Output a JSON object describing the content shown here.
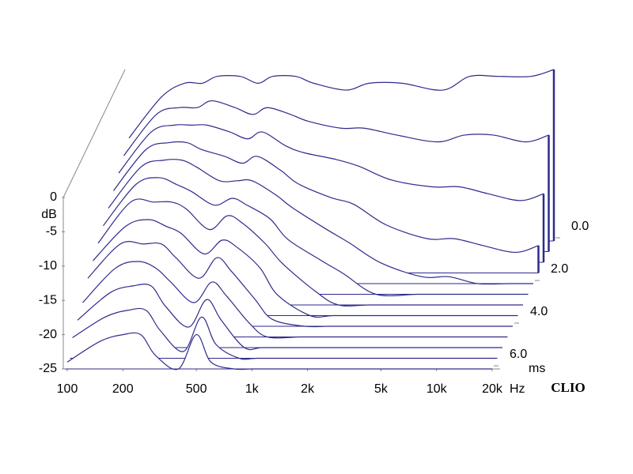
{
  "chart_data": {
    "type": "waterfall",
    "color": "#2e2a8c",
    "log_x": true,
    "y_label": "dB",
    "x_unit": "Hz",
    "z_unit": "ms",
    "brand": "CLIO",
    "xlim": [
      100,
      20000
    ],
    "ylim": [
      -25,
      0
    ],
    "zlim": [
      0,
      6
    ],
    "xticks": [
      100,
      200,
      500,
      {
        "value": 1000,
        "label": "1k"
      },
      {
        "value": 2000,
        "label": "2k"
      },
      {
        "value": 5000,
        "label": "5k"
      },
      {
        "value": 10000,
        "label": "10k"
      },
      {
        "value": 20000,
        "label": "20k"
      }
    ],
    "yticks": [
      0,
      -5,
      -10,
      -15,
      -20,
      -25
    ],
    "zticks": [
      {
        "value": 0,
        "label": "0.0"
      },
      {
        "value": 2,
        "label": "2.0"
      },
      {
        "value": 4,
        "label": "4.0"
      },
      {
        "value": 6,
        "label": "6.0"
      }
    ],
    "x": [
      100,
      150,
      200,
      250,
      300,
      400,
      500,
      600,
      800,
      1000,
      1500,
      2000,
      3000,
      5000,
      7000,
      10000,
      15000,
      20000
    ],
    "z": [
      0,
      0.5,
      1,
      1.5,
      2,
      2.5,
      3,
      3.5,
      4,
      4.5,
      5,
      5.5,
      6
    ],
    "series": [
      {
        "values": [
          -10,
          -4,
          -2,
          -2,
          -1,
          -1,
          -2,
          -1,
          -1,
          -2,
          -3,
          -2,
          -2,
          -3,
          -1,
          -1,
          -1,
          0
        ]
      },
      {
        "values": [
          -11,
          -5,
          -4,
          -4,
          -3,
          -4,
          -5,
          -4,
          -5,
          -6,
          -7,
          -7,
          -8,
          -9,
          -8,
          -8,
          -9,
          -8
        ]
      },
      {
        "values": [
          -12,
          -6,
          -5,
          -5,
          -5,
          -6,
          -7,
          -6,
          -8,
          -9,
          -10,
          -11,
          -13,
          -14,
          -14,
          -15,
          -16,
          -15
        ]
      },
      {
        "values": [
          -13,
          -7,
          -6,
          -6,
          -7,
          -8,
          -9,
          -8,
          -10,
          -12,
          -14,
          -15,
          -18,
          -20,
          -20,
          -21,
          -22,
          -21
        ]
      },
      {
        "values": [
          -14,
          -8,
          -7,
          -7,
          -8,
          -10,
          -10,
          -10,
          -12,
          -14,
          -17,
          -19,
          -22,
          -24,
          -24,
          -25,
          -25,
          -25
        ]
      },
      {
        "values": [
          -15,
          -9,
          -8,
          -9,
          -10,
          -12,
          -11,
          -12,
          -14,
          -17,
          -20,
          -22,
          -25,
          -25,
          -25,
          -25,
          -25,
          -25
        ]
      },
      {
        "values": [
          -16,
          -10,
          -10,
          -10,
          -11,
          -14,
          -12,
          -13,
          -16,
          -19,
          -23,
          -25,
          -25,
          -25,
          -25,
          -25,
          -25,
          -25
        ]
      },
      {
        "values": [
          -17,
          -12,
          -11,
          -12,
          -13,
          -16,
          -14,
          -15,
          -18,
          -22,
          -25,
          -25,
          -25,
          -25,
          -25,
          -25,
          -25,
          -25
        ]
      },
      {
        "values": [
          -18,
          -13,
          -13,
          -13,
          -15,
          -18,
          -15,
          -17,
          -21,
          -24,
          -25,
          -25,
          -25,
          -25,
          -25,
          -25,
          -25,
          -25
        ]
      },
      {
        "values": [
          -20,
          -15,
          -14,
          -15,
          -17,
          -20,
          -17,
          -19,
          -23,
          -25,
          -25,
          -25,
          -25,
          -25,
          -25,
          -25,
          -25,
          -25
        ]
      },
      {
        "values": [
          -21,
          -17,
          -16,
          -16,
          -19,
          -22,
          -18,
          -21,
          -25,
          -25,
          -25,
          -25,
          -25,
          -25,
          -25,
          -25,
          -25,
          -25
        ]
      },
      {
        "values": [
          -22,
          -19,
          -18,
          -18,
          -21,
          -24,
          -19,
          -23,
          -25,
          -25,
          -25,
          -25,
          -25,
          -25,
          -25,
          -25,
          -25,
          -25
        ]
      },
      {
        "values": [
          -24,
          -21,
          -20,
          -20,
          -23,
          -25,
          -20,
          -24,
          -25,
          -25,
          -25,
          -25,
          -25,
          -25,
          -25,
          -25,
          -25,
          -25
        ]
      }
    ]
  }
}
